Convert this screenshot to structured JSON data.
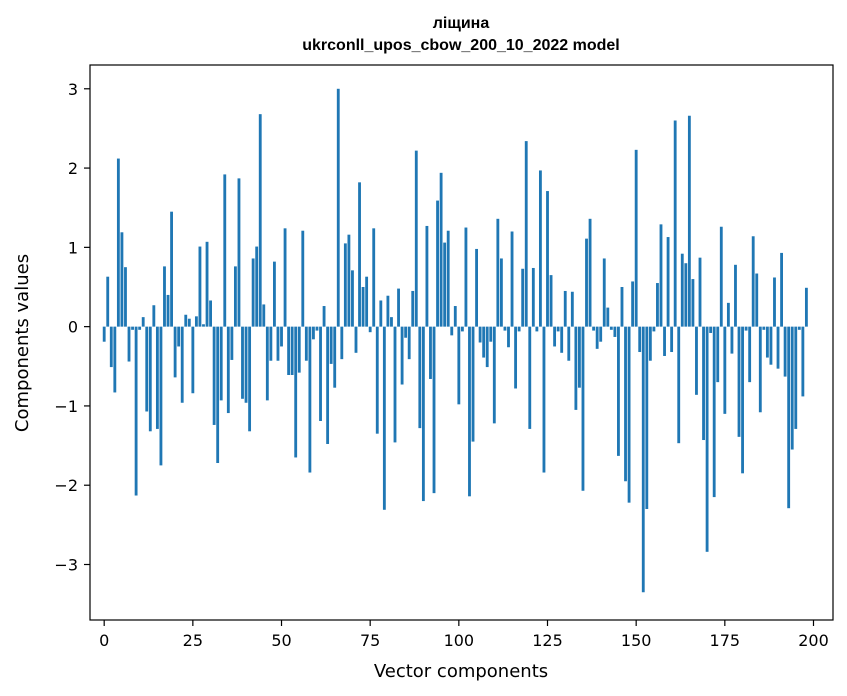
{
  "chart_data": {
    "type": "bar",
    "title": "ліщина",
    "subtitle": "ukrconll_upos_cbow_200_10_2022 model",
    "xlabel": "Vector components",
    "ylabel": "Components values",
    "xlim": [
      -4,
      205.5
    ],
    "ylim": [
      -3.7,
      3.3
    ],
    "xticks": [
      0,
      25,
      50,
      75,
      100,
      125,
      150,
      175,
      200
    ],
    "yticks": [
      -3,
      -2,
      -1,
      0,
      1,
      2,
      3
    ],
    "ytick_labels": [
      "−3",
      "−2",
      "−1",
      "0",
      "1",
      "2",
      "3"
    ],
    "bar_color": "#1f77b4",
    "grid": false,
    "legend": "none",
    "values": [
      -0.19,
      0.63,
      -0.51,
      -0.83,
      2.12,
      1.19,
      0.75,
      -0.44,
      -0.04,
      -2.13,
      -0.04,
      0.12,
      -1.07,
      -1.32,
      0.27,
      -1.29,
      -1.75,
      0.76,
      0.4,
      1.45,
      -0.64,
      -0.25,
      -0.96,
      0.15,
      0.1,
      -0.84,
      0.13,
      1.01,
      0.03,
      1.07,
      0.33,
      -1.24,
      -1.72,
      -0.93,
      1.92,
      -1.09,
      -0.42,
      0.76,
      1.87,
      -0.91,
      -0.96,
      -1.32,
      0.86,
      1.01,
      2.68,
      0.28,
      -0.93,
      -0.43,
      0.82,
      -0.43,
      -0.25,
      1.24,
      -0.61,
      -0.61,
      -1.65,
      -0.58,
      1.21,
      -0.43,
      -1.84,
      -0.16,
      -0.05,
      -1.19,
      0.26,
      -1.48,
      -0.47,
      -0.77,
      3.0,
      -0.41,
      1.05,
      1.16,
      0.71,
      -0.33,
      1.82,
      0.5,
      0.63,
      -0.07,
      1.24,
      -1.35,
      0.33,
      -2.31,
      0.39,
      0.12,
      -1.46,
      0.48,
      -0.73,
      -0.14,
      -0.41,
      0.45,
      2.22,
      -1.28,
      -2.2,
      1.27,
      -0.66,
      -2.1,
      1.59,
      1.94,
      1.06,
      1.21,
      -0.11,
      0.26,
      -0.98,
      -0.06,
      1.25,
      -2.14,
      -1.45,
      0.98,
      -0.2,
      -0.39,
      -0.51,
      -0.19,
      -1.22,
      1.36,
      0.86,
      -0.05,
      -0.26,
      1.2,
      -0.78,
      -0.06,
      0.73,
      2.34,
      -1.29,
      0.74,
      -0.06,
      1.97,
      -1.84,
      1.71,
      0.65,
      -0.25,
      -0.06,
      -0.33,
      0.45,
      -0.43,
      0.44,
      -1.05,
      -0.77,
      -2.07,
      1.11,
      1.36,
      -0.05,
      -0.28,
      -0.19,
      0.86,
      0.24,
      -0.04,
      -0.13,
      -1.63,
      0.5,
      -1.95,
      -2.22,
      0.57,
      2.23,
      -0.32,
      -3.35,
      -2.3,
      -0.43,
      -0.06,
      0.55,
      1.29,
      -0.37,
      1.13,
      -0.32,
      2.6,
      -1.47,
      0.92,
      0.8,
      2.66,
      0.6,
      -0.86,
      0.87,
      -1.43,
      -2.84,
      -0.08,
      -2.15,
      -0.7,
      1.26,
      -1.1,
      0.3,
      -0.34,
      0.78,
      -1.39,
      -1.85,
      -0.05,
      -0.7,
      1.14,
      0.67,
      -1.08,
      -0.04,
      -0.39,
      -0.48,
      0.62,
      -0.53,
      0.93,
      -0.63,
      -2.29,
      -1.55,
      -1.29,
      -0.04,
      -0.88,
      0.49
    ]
  }
}
